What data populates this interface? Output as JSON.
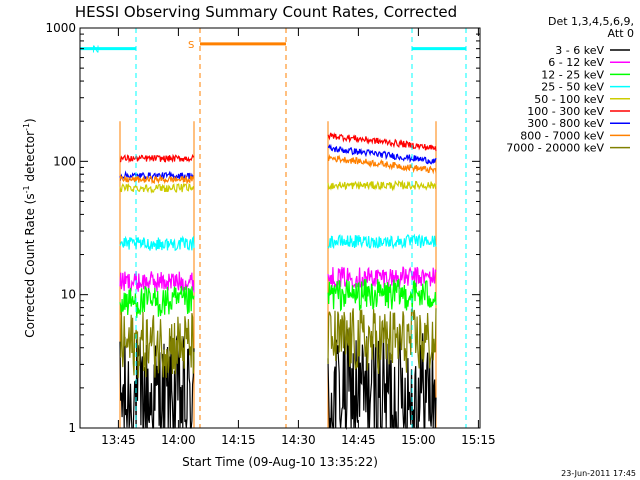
{
  "chart_data": {
    "type": "line",
    "title": "HESSI Observing Summary Count Rates, Corrected",
    "xlabel": "Start Time (09-Aug-10 13:35:22)",
    "ylabel_main": "Corrected Count Rate (s",
    "ylabel_sup1": "-1",
    "ylabel_mid": " detector",
    "ylabel_sup2": "-1",
    "ylabel_end": ")",
    "yscale": "log",
    "ylim": [
      1,
      1000
    ],
    "xlim_minutes": [
      0,
      100
    ],
    "y_ticks": [
      "1",
      "10",
      "100",
      "1000"
    ],
    "x_ticks": [
      {
        "label": "13:45",
        "minutes": 9.6
      },
      {
        "label": "14:00",
        "minutes": 24.6
      },
      {
        "label": "14:15",
        "minutes": 39.6
      },
      {
        "label": "14:30",
        "minutes": 54.6
      },
      {
        "label": "14:45",
        "minutes": 69.6
      },
      {
        "label": "15:00",
        "minutes": 84.6
      },
      {
        "label": "15:15",
        "minutes": 99.6
      }
    ],
    "legend": {
      "header1": "Det 1,3,4,5,6,9,",
      "header2": "Att 0",
      "placement": "right"
    },
    "series": [
      {
        "name": "3 - 6 keV",
        "color": "#000000",
        "seg1": 1.6,
        "seg2": 1.8,
        "noise": 0.5,
        "min": 1.0
      },
      {
        "name": "6 - 12 keV",
        "color": "#ff00ff",
        "seg1": 12.5,
        "seg2": 13.5,
        "noise": 0.08,
        "min": 0
      },
      {
        "name": "12 - 25 keV",
        "color": "#00ff00",
        "seg1": 8.8,
        "seg2": 10,
        "noise": 0.12,
        "min": 0
      },
      {
        "name": "25 - 50 keV",
        "color": "#00ffff",
        "seg1": 24,
        "seg2": 25,
        "noise": 0.05,
        "min": 0
      },
      {
        "name": "50 - 100 keV",
        "color": "#cccc00",
        "seg1": 63,
        "seg2": 66,
        "noise": 0.03,
        "min": 0
      },
      {
        "name": "100 - 300 keV",
        "color": "#ff0000",
        "seg1": 105,
        "seg2": 125,
        "noise": 0.025,
        "min": 0
      },
      {
        "name": "300 - 800 keV",
        "color": "#0000ff",
        "seg1": 78,
        "seg2": 100,
        "noise": 0.025,
        "min": 0
      },
      {
        "name": "800 - 7000 keV",
        "color": "#ff8000",
        "seg1": 73,
        "seg2": 85,
        "noise": 0.025,
        "min": 0
      },
      {
        "name": "7000 - 20000 keV",
        "color": "#808000",
        "seg1": 4.2,
        "seg2": 4.5,
        "noise": 0.25,
        "min": 0
      }
    ],
    "observation_segments": [
      {
        "start_minutes": 10.0,
        "end_minutes": 28.5
      },
      {
        "start_minutes": 62.0,
        "end_minutes": 89.0
      }
    ],
    "flags": [
      {
        "label": "N",
        "color": "#00ffff",
        "start_minutes": 0.0,
        "end_minutes": 14.0,
        "level": 700
      },
      {
        "label": "S",
        "color": "#ff8000",
        "start_minutes": 30.0,
        "end_minutes": 51.5,
        "level": 760
      },
      {
        "label": "",
        "color": "#00ffff",
        "start_minutes": 83.0,
        "end_minutes": 96.5,
        "level": 700
      }
    ]
  },
  "timestamp": "23-Jun-2011 17:45"
}
